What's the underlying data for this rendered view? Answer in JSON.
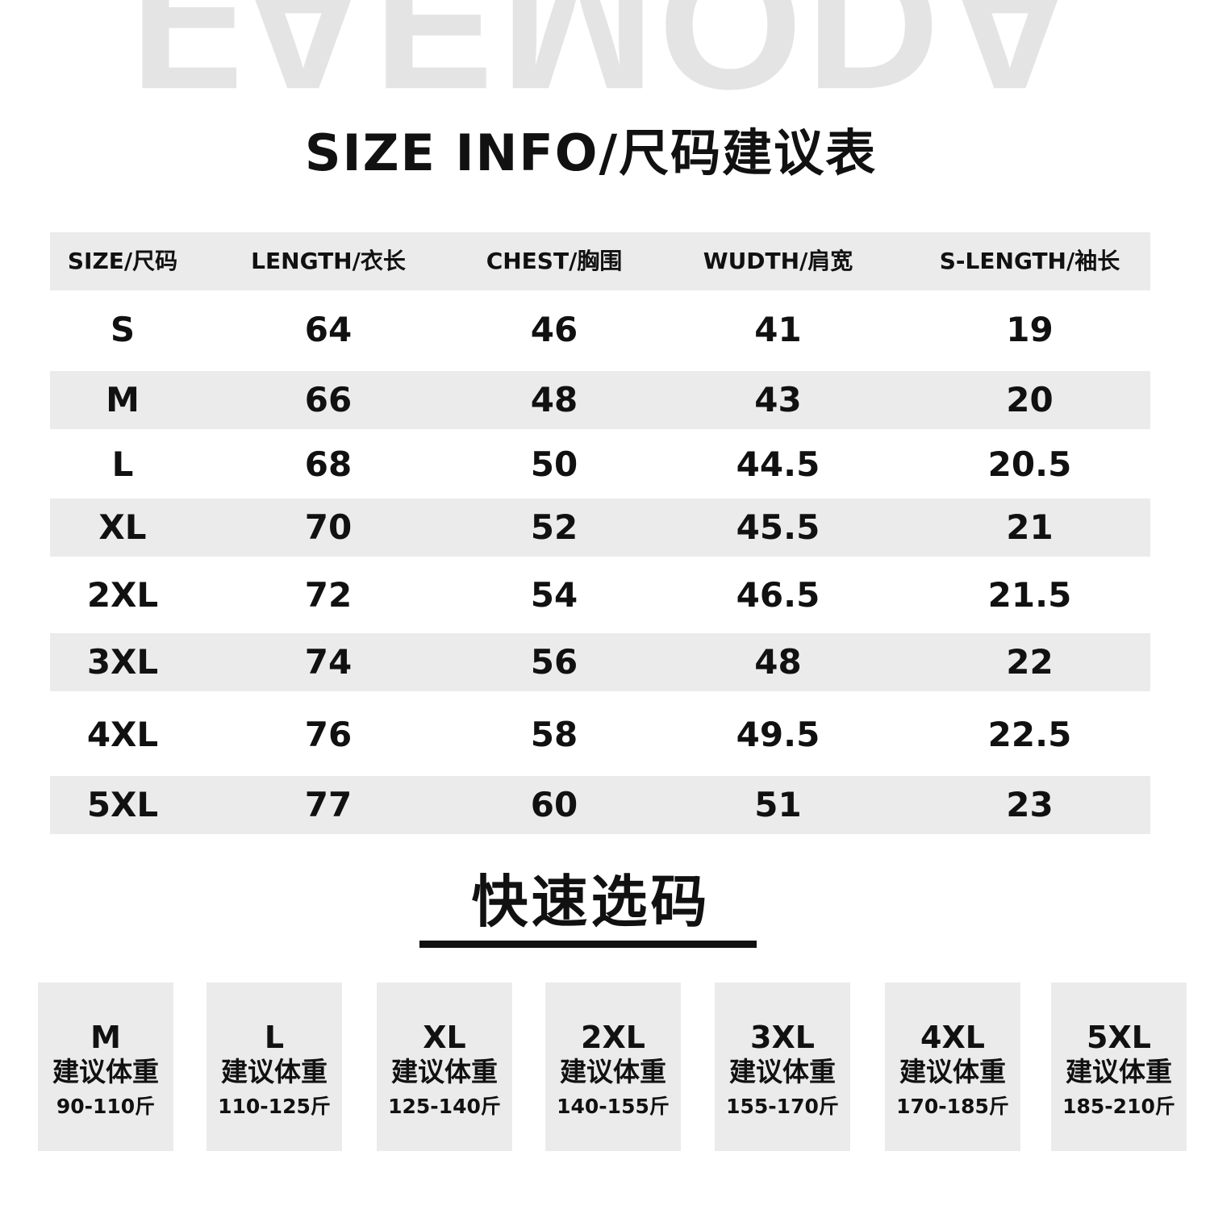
{
  "watermark": "FAEMODA",
  "title": "SIZE INFO/尺码建议表",
  "table": {
    "headers": [
      "SIZE/尺码",
      "LENGTH/衣长",
      "CHEST/胸围",
      "WUDTH/肩宽",
      "S-LENGTH/袖长"
    ],
    "rows": [
      [
        "S",
        "64",
        "46",
        "41",
        "19"
      ],
      [
        "M",
        "66",
        "48",
        "43",
        "20"
      ],
      [
        "L",
        "68",
        "50",
        "44.5",
        "20.5"
      ],
      [
        "XL",
        "70",
        "52",
        "45.5",
        "21"
      ],
      [
        "2XL",
        "72",
        "54",
        "46.5",
        "21.5"
      ],
      [
        "3XL",
        "74",
        "56",
        "48",
        "22"
      ],
      [
        "4XL",
        "76",
        "58",
        "49.5",
        "22.5"
      ],
      [
        "5XL",
        "77",
        "60",
        "51",
        "23"
      ]
    ]
  },
  "quick_select": {
    "title": "快速选码",
    "label": "建议体重",
    "cards": [
      {
        "size": "M",
        "weight": "90-110斤"
      },
      {
        "size": "L",
        "weight": "110-125斤"
      },
      {
        "size": "XL",
        "weight": "125-140斤"
      },
      {
        "size": "2XL",
        "weight": "140-155斤"
      },
      {
        "size": "3XL",
        "weight": "155-170斤"
      },
      {
        "size": "4XL",
        "weight": "170-185斤"
      },
      {
        "size": "5XL",
        "weight": "185-210斤"
      }
    ]
  }
}
